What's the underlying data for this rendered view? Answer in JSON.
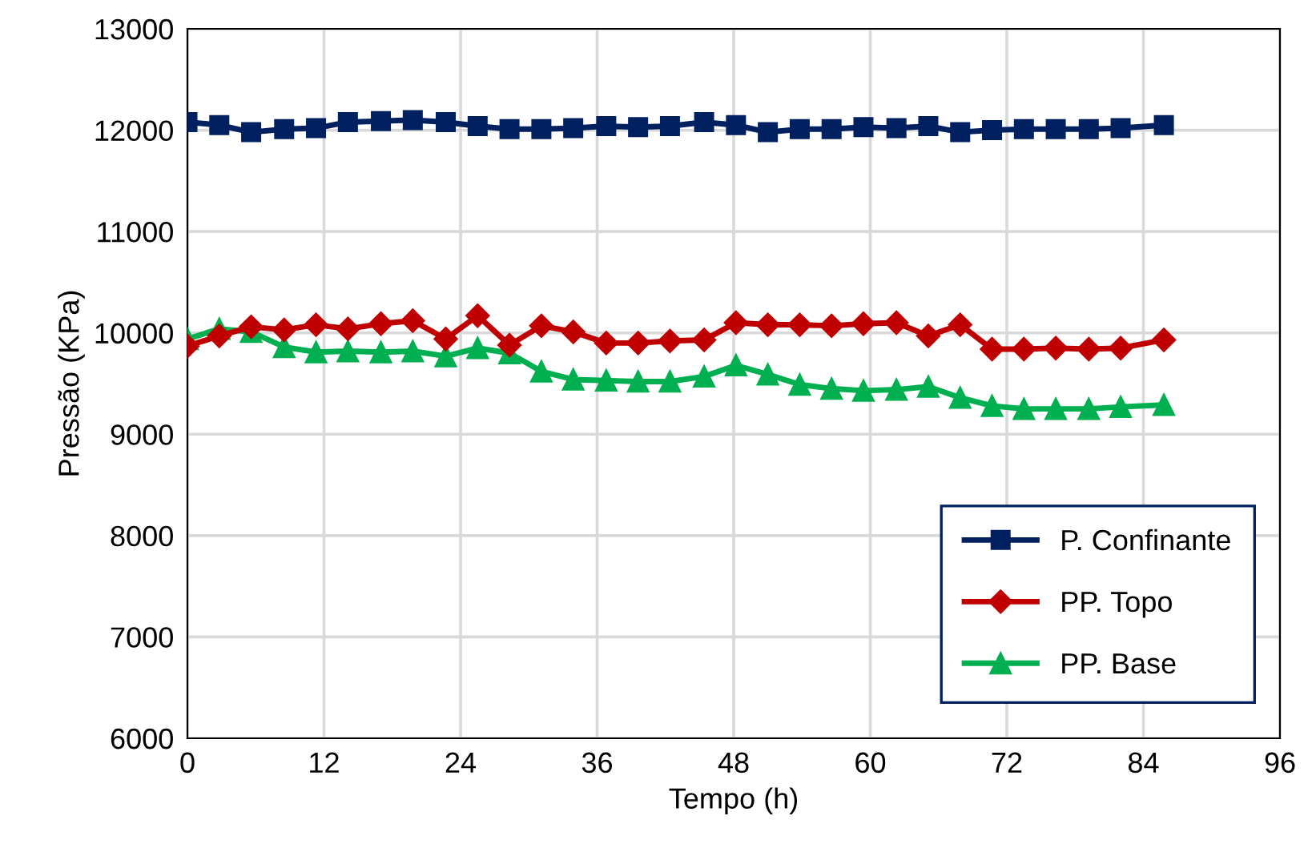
{
  "chart_data": {
    "type": "line",
    "xlabel": "Tempo (h)",
    "ylabel": "Pressão (KPa)",
    "x": [
      0,
      2.8,
      5.6,
      8.5,
      11.3,
      14.1,
      17.0,
      19.8,
      22.7,
      25.5,
      28.3,
      31.1,
      33.9,
      36.8,
      39.6,
      42.4,
      45.4,
      48.2,
      51.0,
      53.8,
      56.6,
      59.4,
      62.3,
      65.1,
      67.9,
      70.7,
      73.5,
      76.3,
      79.2,
      82.0,
      85.8
    ],
    "series": [
      {
        "name": "P. Confinante",
        "color": "#002060",
        "marker": "square",
        "values": [
          12080,
          12050,
          11980,
          12010,
          12020,
          12080,
          12090,
          12100,
          12080,
          12040,
          12010,
          12010,
          12020,
          12040,
          12030,
          12040,
          12080,
          12050,
          11980,
          12010,
          12010,
          12030,
          12020,
          12040,
          11980,
          12000,
          12010,
          12010,
          12010,
          12020,
          12050
        ]
      },
      {
        "name": "PP. Topo",
        "color": "#c00000",
        "marker": "diamond",
        "values": [
          9870,
          9970,
          10060,
          10030,
          10080,
          10040,
          10090,
          10120,
          9940,
          10170,
          9880,
          10070,
          10010,
          9900,
          9900,
          9920,
          9930,
          10100,
          10080,
          10080,
          10070,
          10090,
          10100,
          9970,
          10080,
          9840,
          9840,
          9850,
          9840,
          9850,
          9930
        ]
      },
      {
        "name": "PP. Base",
        "color": "#00b050",
        "marker": "triangle",
        "values": [
          9940,
          10040,
          10010,
          9860,
          9810,
          9820,
          9810,
          9820,
          9770,
          9850,
          9800,
          9620,
          9540,
          9530,
          9520,
          9520,
          9570,
          9680,
          9590,
          9490,
          9450,
          9430,
          9440,
          9470,
          9360,
          9280,
          9250,
          9250,
          9250,
          9270,
          9290
        ]
      }
    ],
    "xlim": [
      0,
      96
    ],
    "xticks": [
      0,
      12,
      24,
      36,
      48,
      60,
      72,
      84,
      96
    ],
    "ylim": [
      6000,
      13000
    ],
    "yticks": [
      6000,
      7000,
      8000,
      9000,
      10000,
      11000,
      12000,
      13000
    ],
    "grid": true,
    "legend": "bottom right",
    "line_style": "solid"
  }
}
